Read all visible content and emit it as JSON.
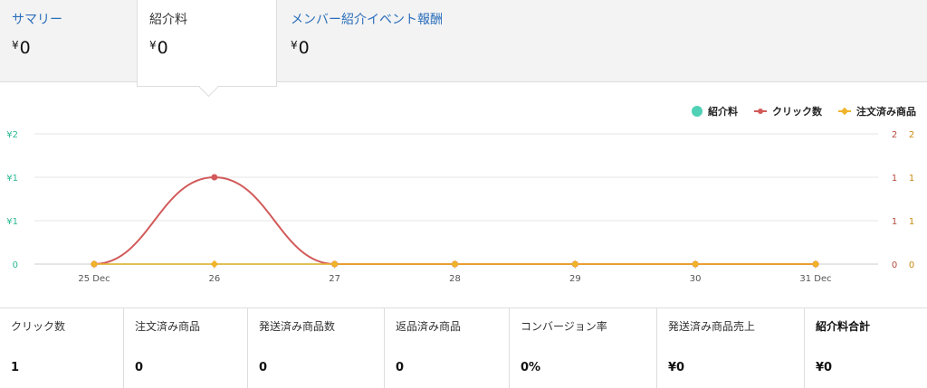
{
  "tabs": [
    {
      "label": "サマリー",
      "value": "0"
    },
    {
      "label": "紹介料",
      "value": "0"
    },
    {
      "label": "メンバー紹介イベント報酬",
      "value": "0"
    }
  ],
  "currency_symbol": "¥",
  "legend": [
    {
      "label": "紹介料",
      "color": "#4fd1b5",
      "icon": "circle-dot-icon"
    },
    {
      "label": "クリック数",
      "color": "#d25a5a",
      "icon": "line-dot-icon"
    },
    {
      "label": "注文済み商品",
      "color": "#f0b429",
      "icon": "line-diamond-icon"
    }
  ],
  "chart_data": {
    "type": "line",
    "categories": [
      "25 Dec",
      "26",
      "27",
      "28",
      "29",
      "30",
      "31 Dec"
    ],
    "series": [
      {
        "name": "紹介料",
        "axis": "left",
        "color": "#4fd1b5",
        "values": [
          0,
          0,
          0,
          0,
          0,
          0,
          0
        ]
      },
      {
        "name": "クリック数",
        "axis": "right",
        "color": "#d25a5a",
        "values": [
          0,
          1,
          0,
          0,
          0,
          0,
          0
        ]
      },
      {
        "name": "注文済み商品",
        "axis": "right2",
        "color": "#f0b429",
        "values": [
          0,
          0,
          0,
          0,
          0,
          0,
          0
        ]
      }
    ],
    "y_left_ticks": [
      "¥2",
      "¥1",
      "¥1",
      "0"
    ],
    "y_right_ticks": [
      "2",
      "1",
      "1",
      "0"
    ],
    "y_right2_ticks": [
      "2",
      "1",
      "1",
      "0"
    ],
    "ylim": [
      0,
      1.5
    ],
    "grid": true
  },
  "stats": [
    {
      "label": "クリック数",
      "value": "1"
    },
    {
      "label": "注文済み商品",
      "value": "0"
    },
    {
      "label": "発送済み商品数",
      "value": "0"
    },
    {
      "label": "返品済み商品",
      "value": "0"
    },
    {
      "label": "コンバージョン率",
      "value": "0%"
    },
    {
      "label": "発送済み商品売上",
      "value": "¥0"
    },
    {
      "label": "紹介料合計",
      "value": "¥0"
    }
  ]
}
